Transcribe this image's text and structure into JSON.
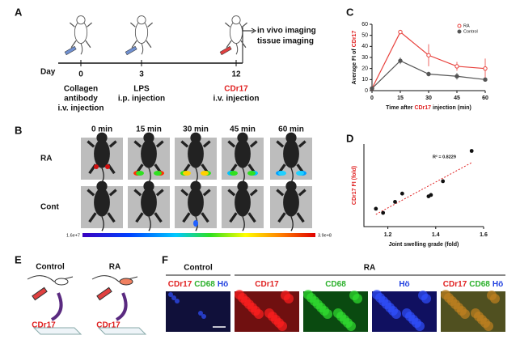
{
  "panel_labels": [
    "A",
    "B",
    "C",
    "D",
    "E",
    "F"
  ],
  "panel_a": {
    "day_label": "Day",
    "days": [
      "0",
      "3",
      "12"
    ],
    "events": [
      {
        "lines": [
          "Collagen",
          "antibody",
          "i.v. injection"
        ]
      },
      {
        "lines": [
          "LPS",
          "i.p. injection"
        ]
      },
      {
        "lines": [
          "CDr17",
          "i.v. injection"
        ]
      }
    ],
    "outcomes": [
      "in vivo imaging",
      "tissue imaging"
    ]
  },
  "panel_b": {
    "times": [
      "0 min",
      "15 min",
      "30 min",
      "45 min",
      "60 min"
    ],
    "rows": [
      "RA",
      "Cont"
    ],
    "colorbar": [
      "1.6e+7",
      "3.9e+8"
    ]
  },
  "panel_e": {
    "groups": [
      "Control",
      "RA"
    ],
    "probe": "CDr17"
  },
  "panel_f": {
    "groups": [
      "Control",
      "RA"
    ],
    "channels": [
      [
        {
          "text": "CDr17",
          "color": "#e02020"
        },
        {
          "text": "CD68",
          "color": "#2ab02a"
        },
        {
          "text": "Hö",
          "color": "#2040e0"
        }
      ],
      [
        {
          "text": "CDr17",
          "color": "#e02020"
        }
      ],
      [
        {
          "text": "CD68",
          "color": "#2ab02a"
        }
      ],
      [
        {
          "text": "Hö",
          "color": "#2040e0"
        }
      ],
      [
        {
          "text": "CDr17",
          "color": "#e02020"
        },
        {
          "text": "CD68",
          "color": "#2ab02a"
        },
        {
          "text": "Hö",
          "color": "#2040e0"
        }
      ]
    ]
  },
  "chart_data": [
    {
      "type": "line",
      "ylabel": [
        "Average FI of ",
        "CDr17"
      ],
      "xlabel": [
        "Time after ",
        "CDr17",
        " injection (min)"
      ],
      "x": [
        0,
        15,
        30,
        45,
        60
      ],
      "xlim": [
        0,
        60
      ],
      "xticks": [
        0,
        15,
        30,
        45,
        60
      ],
      "ylim": [
        0,
        60
      ],
      "yticks": [
        0,
        10,
        20,
        30,
        40,
        50,
        60
      ],
      "legend": "upper right",
      "series": [
        {
          "name": "RA",
          "color": "#e8413c",
          "values": [
            2,
            53,
            32,
            22,
            20
          ],
          "errors": [
            0,
            2,
            10,
            4,
            9
          ]
        },
        {
          "name": "Control",
          "color": "#555555",
          "values": [
            2,
            27,
            15,
            13,
            10
          ],
          "errors": [
            0,
            3,
            2,
            3,
            1
          ]
        }
      ]
    },
    {
      "type": "scatter",
      "xlabel": "Joint swelling grade (fold)",
      "ylabel": "CDr17 FI (fold)",
      "x": [
        1.15,
        1.18,
        1.23,
        1.26,
        1.37,
        1.38,
        1.43,
        1.55
      ],
      "values": [
        1.3,
        1.0,
        1.8,
        2.4,
        2.2,
        2.3,
        3.3,
        5.5
      ],
      "xlim": [
        1.1,
        1.6
      ],
      "xticks": [
        1.2,
        1.4,
        1.6
      ],
      "ylim": [
        0,
        6
      ],
      "color": "#111111",
      "trendline": true,
      "trendline_color": "#e02020",
      "annotation": "R² = 0.8229"
    }
  ]
}
